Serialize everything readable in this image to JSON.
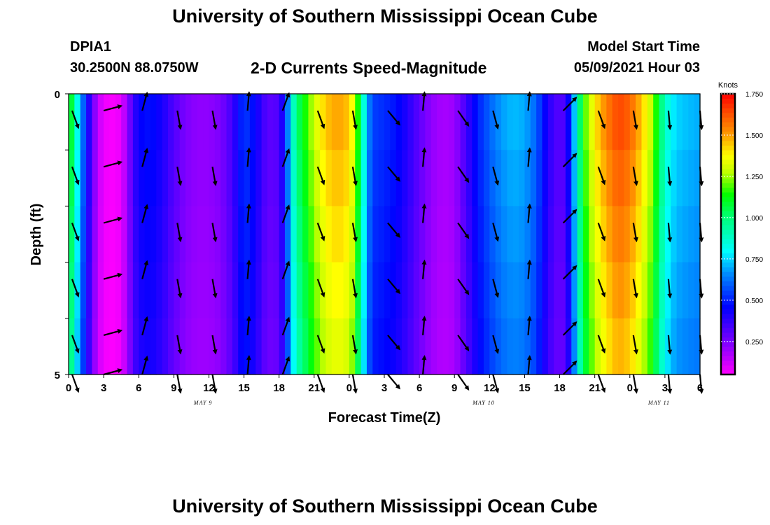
{
  "header": {
    "title": "University of Southern Mississippi Ocean Cube",
    "station_id": "DPIA1",
    "coords": "30.2500N  88.0750W",
    "plot_title": "2-D Currents Speed-Magnitude",
    "model_label": "Model Start Time",
    "model_time": "05/09/2021 Hour 03"
  },
  "footer": {
    "title": "University of Southern Mississippi Ocean Cube"
  },
  "chart_data": {
    "type": "heatmap",
    "title": "2-D Currents Speed-Magnitude",
    "xlabel": "Forecast Time(Z)",
    "ylabel": "Depth (ft)",
    "ylim": [
      0,
      5
    ],
    "y_ticks": [
      "0",
      "5"
    ],
    "x_hours_from_start": [
      0,
      3,
      6,
      9,
      12,
      15,
      18,
      21,
      24,
      27,
      30,
      33,
      36,
      39,
      42,
      45,
      48,
      51,
      54
    ],
    "x_tick_labels": [
      "0",
      "3",
      "6",
      "9",
      "12",
      "15",
      "18",
      "21",
      "0",
      "3",
      "6",
      "9",
      "12",
      "15",
      "18",
      "21",
      "0",
      "3",
      "6"
    ],
    "date_labels": [
      {
        "label": "MAY  9",
        "hour": 11.5
      },
      {
        "label": "MAY  10",
        "hour": 35.5
      },
      {
        "label": "MAY  11",
        "hour": 50.5
      }
    ],
    "colorbar": {
      "unit": "Knots",
      "min": 0.05,
      "max": 1.75,
      "ticks": [
        "1.750",
        "1.500",
        "1.250",
        "1.000",
        "0.750",
        "0.500",
        "0.250"
      ]
    },
    "speed_profile": {
      "hours": [
        0,
        0.5,
        1,
        1.5,
        2,
        2.5,
        3,
        3.5,
        4,
        4.5,
        5,
        5.5,
        6,
        7,
        8,
        9,
        10,
        11,
        12,
        13,
        14,
        15,
        16,
        17,
        18,
        18.5,
        19,
        19.5,
        20,
        21,
        22,
        23,
        24,
        24.5,
        25,
        25.5,
        26,
        27,
        28,
        29,
        30,
        31,
        32,
        33,
        34,
        35,
        36,
        37,
        38,
        39,
        40,
        41,
        42,
        42.5,
        43,
        43.5,
        44,
        45,
        46,
        47,
        48,
        49,
        50,
        50.5,
        51,
        51.5,
        52,
        53,
        54
      ],
      "speeds": [
        1.2,
        0.95,
        0.7,
        0.5,
        0.3,
        0.15,
        0.08,
        0.06,
        0.06,
        0.09,
        0.2,
        0.35,
        0.45,
        0.48,
        0.42,
        0.32,
        0.25,
        0.22,
        0.22,
        0.25,
        0.35,
        0.55,
        0.45,
        0.3,
        0.32,
        0.5,
        0.8,
        1.0,
        1.1,
        1.3,
        1.45,
        1.5,
        1.45,
        1.3,
        1.0,
        0.7,
        0.55,
        0.52,
        0.48,
        0.4,
        0.3,
        0.22,
        0.18,
        0.2,
        0.35,
        0.5,
        0.6,
        0.68,
        0.72,
        0.7,
        0.6,
        0.4,
        0.3,
        0.35,
        0.55,
        0.9,
        1.15,
        1.4,
        1.55,
        1.65,
        1.6,
        1.45,
        1.25,
        1.05,
        0.9,
        0.8,
        0.75,
        0.72,
        0.7
      ]
    },
    "arrow_hours": [
      0.3,
      3,
      6.3,
      9.3,
      12.3,
      15.3,
      18.3,
      21.3,
      24.3,
      27.3,
      30.3,
      33.3,
      36.3,
      39.3,
      42.3,
      45.3,
      48.3,
      51.3,
      54
    ],
    "arrow_directions_deg": [
      160,
      75,
      15,
      170,
      170,
      5,
      20,
      160,
      170,
      140,
      5,
      145,
      165,
      5,
      45,
      160,
      170,
      175,
      175
    ],
    "arrow_depths_ft": [
      0.3,
      1.3,
      2.3,
      3.3,
      4.3,
      5.0
    ]
  }
}
